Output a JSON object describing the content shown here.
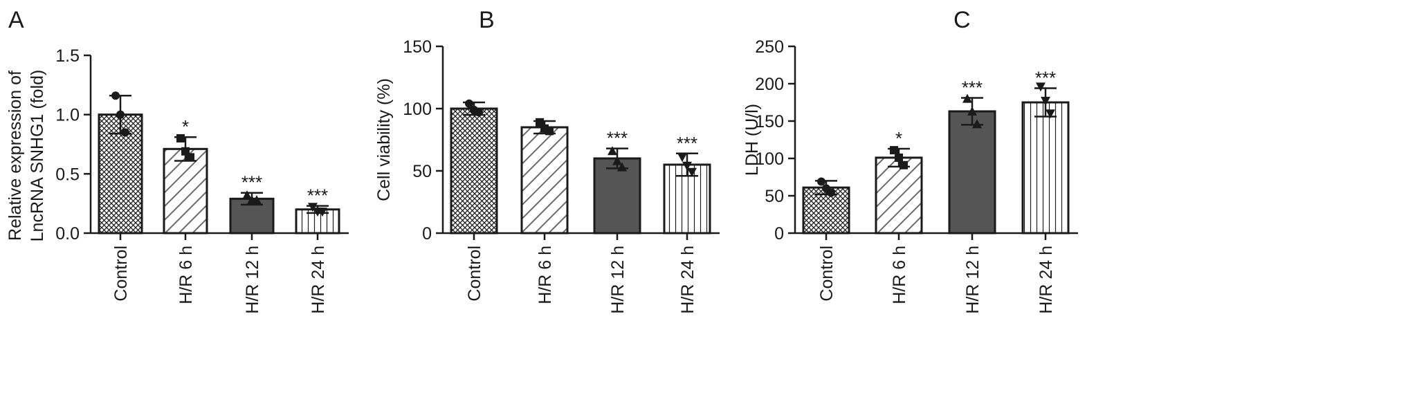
{
  "colors": {
    "axis": "#1a1a1a",
    "bar_outline": "#1a1a1a",
    "bar_solid_fill": "#555555",
    "background": "#ffffff"
  },
  "chart_data": [
    {
      "panel_label": "A",
      "type": "bar",
      "ylabel_lines": [
        "Relative expression of",
        "LncRNA SNHG1 (fold)"
      ],
      "categories": [
        "Control",
        "H/R 6 h",
        "H/R 12 h",
        "H/R 24 h"
      ],
      "values": [
        1.0,
        0.71,
        0.29,
        0.2
      ],
      "error": [
        0.16,
        0.1,
        0.05,
        0.03
      ],
      "points": [
        [
          1.16,
          1.0,
          0.85
        ],
        [
          0.8,
          0.69,
          0.64
        ],
        [
          0.32,
          0.28,
          0.28
        ],
        [
          0.22,
          0.18,
          0.18
        ]
      ],
      "significance": [
        "",
        "*",
        "***",
        "***"
      ],
      "ylim": [
        0,
        1.5
      ],
      "yticks": [
        0.0,
        0.5,
        1.0,
        1.5
      ],
      "ytick_labels": [
        "0.0",
        "0.5",
        "1.0",
        "1.5"
      ],
      "patterns": [
        "crosshatch",
        "diagonal",
        "solid",
        "vertical"
      ],
      "grid": false
    },
    {
      "panel_label": "B",
      "type": "bar",
      "ylabel_lines": [
        "Cell viability (%)"
      ],
      "categories": [
        "Control",
        "H/R 6 h",
        "H/R 12 h",
        "H/R 24 h"
      ],
      "values": [
        100,
        85,
        60,
        55
      ],
      "error": [
        5,
        5,
        8,
        9
      ],
      "points": [
        [
          104,
          99,
          97
        ],
        [
          89,
          84,
          82
        ],
        [
          66,
          58,
          53
        ],
        [
          61,
          54,
          49
        ]
      ],
      "significance": [
        "",
        "",
        "***",
        "***"
      ],
      "ylim": [
        0,
        150
      ],
      "yticks": [
        0,
        50,
        100,
        150
      ],
      "ytick_labels": [
        "0",
        "50",
        "100",
        "150"
      ],
      "patterns": [
        "crosshatch",
        "diagonal",
        "solid",
        "vertical"
      ],
      "grid": false
    },
    {
      "panel_label": "C",
      "type": "bar",
      "ylabel_lines": [
        "LDH (U/l)"
      ],
      "categories": [
        "Control",
        "H/R 6 h",
        "H/R 12 h",
        "H/R 24 h"
      ],
      "values": [
        61,
        101,
        163,
        175
      ],
      "error": [
        9,
        12,
        18,
        19
      ],
      "points": [
        [
          69,
          60,
          54
        ],
        [
          111,
          101,
          91
        ],
        [
          180,
          163,
          146
        ],
        [
          196,
          177,
          160
        ]
      ],
      "significance": [
        "",
        "*",
        "***",
        "***"
      ],
      "ylim": [
        0,
        250
      ],
      "yticks": [
        0,
        50,
        100,
        150,
        200,
        250
      ],
      "ytick_labels": [
        "0",
        "50",
        "100",
        "150",
        "200",
        "250"
      ],
      "patterns": [
        "crosshatch",
        "diagonal",
        "solid",
        "vertical"
      ],
      "grid": false
    }
  ]
}
